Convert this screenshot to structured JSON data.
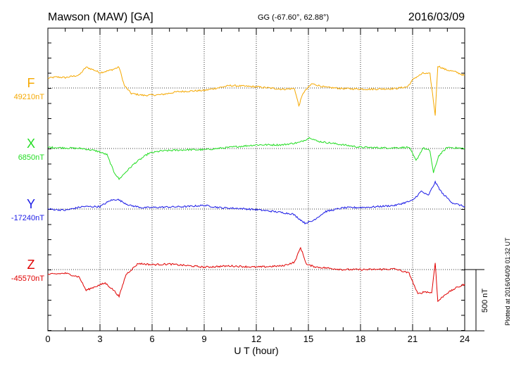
{
  "header": {
    "station": "Mawson (MAW)  [GA]",
    "coords": "GG (-67.60°,  62.88°)",
    "date": "2016/03/09"
  },
  "footer_note": "Plotted at 2016/04/09 01:32 UT",
  "chart_data": {
    "type": "line",
    "xlabel": "U T (hour)",
    "xlim": [
      0,
      24
    ],
    "x_ticks": [
      "0",
      "3",
      "6",
      "9",
      "12",
      "15",
      "18",
      "21",
      "24"
    ],
    "scale_bar": "500 nT",
    "y_unit": "nT",
    "series": [
      {
        "name": "F",
        "baseline_label": "49210nT",
        "color": "#f5a800",
        "points": [
          [
            0,
            80
          ],
          [
            0.5,
            90
          ],
          [
            1,
            85
          ],
          [
            1.8,
            105
          ],
          [
            2.2,
            170
          ],
          [
            2.6,
            150
          ],
          [
            3,
            125
          ],
          [
            3.6,
            145
          ],
          [
            4.1,
            170
          ],
          [
            4.4,
            20
          ],
          [
            4.8,
            -45
          ],
          [
            5.5,
            -60
          ],
          [
            6.5,
            -55
          ],
          [
            7.5,
            -30
          ],
          [
            9,
            -20
          ],
          [
            10.5,
            20
          ],
          [
            12,
            10
          ],
          [
            13.5,
            -10
          ],
          [
            14.2,
            -5
          ],
          [
            14.45,
            -145
          ],
          [
            14.7,
            -40
          ],
          [
            15.2,
            35
          ],
          [
            16,
            5
          ],
          [
            17,
            -5
          ],
          [
            18.5,
            -10
          ],
          [
            20,
            -5
          ],
          [
            20.7,
            10
          ],
          [
            21.1,
            80
          ],
          [
            21.6,
            120
          ],
          [
            22,
            115
          ],
          [
            22.3,
            -220
          ],
          [
            22.45,
            180
          ],
          [
            22.9,
            150
          ],
          [
            23.5,
            130
          ],
          [
            24,
            100
          ]
        ]
      },
      {
        "name": "X",
        "baseline_label": "6850nT",
        "color": "#22dd22",
        "points": [
          [
            0,
            10
          ],
          [
            1,
            5
          ],
          [
            2,
            0
          ],
          [
            2.8,
            -20
          ],
          [
            3.4,
            -50
          ],
          [
            3.8,
            -190
          ],
          [
            4.1,
            -250
          ],
          [
            4.5,
            -190
          ],
          [
            5,
            -120
          ],
          [
            5.8,
            -40
          ],
          [
            6.5,
            -20
          ],
          [
            8,
            -10
          ],
          [
            9,
            -10
          ],
          [
            10.5,
            10
          ],
          [
            12,
            30
          ],
          [
            13.5,
            30
          ],
          [
            14.5,
            50
          ],
          [
            15.1,
            90
          ],
          [
            15.5,
            60
          ],
          [
            16.5,
            40
          ],
          [
            18,
            10
          ],
          [
            19.5,
            5
          ],
          [
            20.8,
            10
          ],
          [
            21.2,
            -100
          ],
          [
            21.6,
            5
          ],
          [
            22,
            -20
          ],
          [
            22.2,
            -200
          ],
          [
            22.5,
            -60
          ],
          [
            23,
            10
          ],
          [
            24,
            0
          ]
        ]
      },
      {
        "name": "Y",
        "baseline_label": "-17240nT",
        "color": "#1a1ae6",
        "points": [
          [
            0,
            0
          ],
          [
            1,
            -10
          ],
          [
            2,
            20
          ],
          [
            3,
            20
          ],
          [
            3.6,
            70
          ],
          [
            4,
            80
          ],
          [
            4.7,
            30
          ],
          [
            5.5,
            10
          ],
          [
            6.5,
            15
          ],
          [
            8,
            20
          ],
          [
            9,
            30
          ],
          [
            10,
            10
          ],
          [
            11,
            5
          ],
          [
            12,
            -5
          ],
          [
            13,
            -20
          ],
          [
            14.1,
            -40
          ],
          [
            14.8,
            -115
          ],
          [
            15.2,
            -100
          ],
          [
            16,
            -20
          ],
          [
            17,
            10
          ],
          [
            18.5,
            15
          ],
          [
            20,
            30
          ],
          [
            21,
            70
          ],
          [
            21.5,
            145
          ],
          [
            21.9,
            110
          ],
          [
            22.3,
            220
          ],
          [
            22.7,
            130
          ],
          [
            23.3,
            50
          ],
          [
            24,
            20
          ]
        ]
      },
      {
        "name": "Z",
        "baseline_label": "-45570nT",
        "color": "#e00000",
        "points": [
          [
            0,
            -40
          ],
          [
            1,
            -30
          ],
          [
            1.8,
            -60
          ],
          [
            2.2,
            -170
          ],
          [
            2.7,
            -140
          ],
          [
            3.3,
            -110
          ],
          [
            3.8,
            -170
          ],
          [
            4.1,
            -220
          ],
          [
            4.5,
            -40
          ],
          [
            5.2,
            50
          ],
          [
            6,
            40
          ],
          [
            7,
            45
          ],
          [
            9,
            20
          ],
          [
            10.5,
            30
          ],
          [
            12,
            20
          ],
          [
            13.5,
            30
          ],
          [
            14.2,
            60
          ],
          [
            14.55,
            180
          ],
          [
            14.9,
            40
          ],
          [
            15.5,
            20
          ],
          [
            17,
            0
          ],
          [
            18.5,
            0
          ],
          [
            20,
            5
          ],
          [
            20.8,
            -30
          ],
          [
            21.3,
            -200
          ],
          [
            21.7,
            -180
          ],
          [
            22.1,
            -190
          ],
          [
            22.3,
            60
          ],
          [
            22.45,
            -260
          ],
          [
            22.9,
            -200
          ],
          [
            23.5,
            -150
          ],
          [
            24,
            -120
          ]
        ]
      }
    ]
  }
}
